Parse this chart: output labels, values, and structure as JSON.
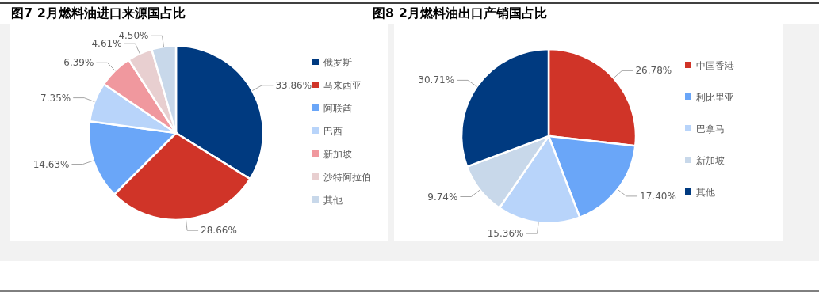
{
  "chart_data": [
    {
      "type": "pie",
      "title": "图7 2月燃料油进口来源国占比",
      "categories": [
        "俄罗斯",
        "马来西亚",
        "阿联酋",
        "巴西",
        "新加坡",
        "沙特阿拉伯",
        "其他"
      ],
      "values": [
        33.86,
        28.66,
        14.63,
        7.35,
        6.39,
        4.61,
        4.5
      ],
      "colors": [
        "#003a80",
        "#d03428",
        "#6aa6f8",
        "#b8d4fa",
        "#f0989e",
        "#e8cfd0",
        "#c8d8ea"
      ],
      "value_labels": [
        "33.86%",
        "28.66%",
        "14.63%",
        "7.35%",
        "6.39%",
        "4.61%",
        "4.50%"
      ],
      "legend": "right"
    },
    {
      "type": "pie",
      "title": "图8 2月燃料油出口产销国占比",
      "categories": [
        "中国香港",
        "利比里亚",
        "巴拿马",
        "新加坡",
        "其他"
      ],
      "values": [
        26.78,
        17.4,
        15.36,
        9.74,
        30.71
      ],
      "colors": [
        "#d03428",
        "#6aa6f8",
        "#b8d4fa",
        "#c8d8ea",
        "#003a80"
      ],
      "value_labels": [
        "26.78%",
        "17.40%",
        "15.36%",
        "9.74%",
        "30.71%"
      ],
      "legend": "right"
    }
  ]
}
